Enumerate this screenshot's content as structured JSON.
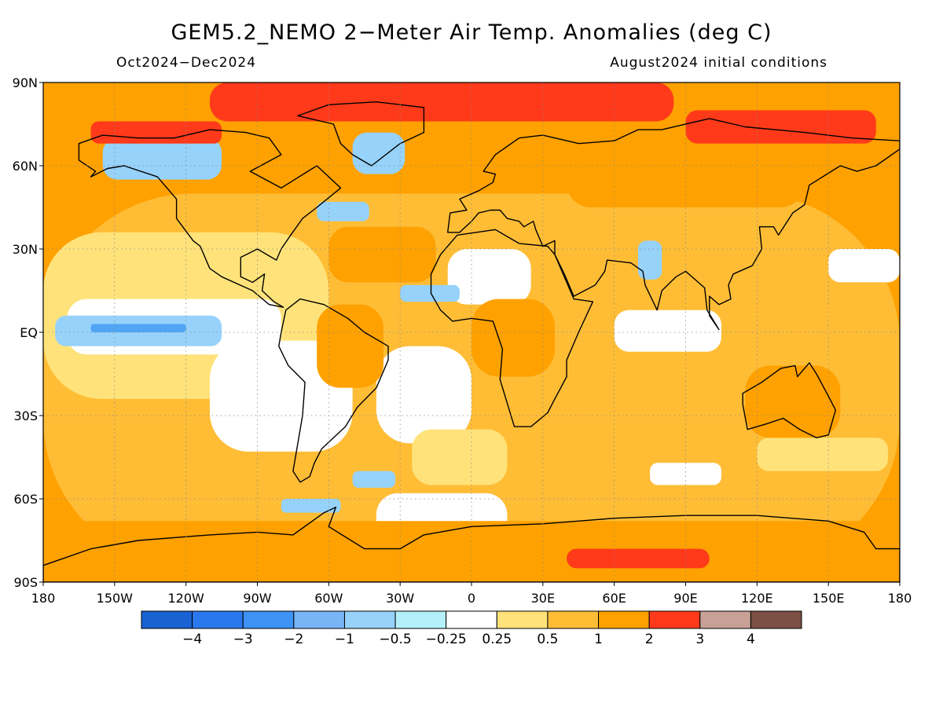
{
  "title": "GEM5.2_NEMO 2−Meter Air Temp. Anomalies (deg C)",
  "subtitle_left": "Oct2024−Dec2024",
  "subtitle_right": "August2024 initial conditions",
  "map": {
    "projection": "cylindrical-equidistant",
    "lon_range": [
      -180,
      180
    ],
    "lat_range": [
      -90,
      90
    ],
    "grid": "dotted",
    "lat_ticks": [
      {
        "value": 90,
        "label": "90N"
      },
      {
        "value": 60,
        "label": "60N"
      },
      {
        "value": 30,
        "label": "30N"
      },
      {
        "value": 0,
        "label": "EQ"
      },
      {
        "value": -30,
        "label": "30S"
      },
      {
        "value": -60,
        "label": "60S"
      },
      {
        "value": -90,
        "label": "90S"
      }
    ],
    "lon_ticks": [
      {
        "value": -180,
        "label": "180"
      },
      {
        "value": -150,
        "label": "150W"
      },
      {
        "value": -120,
        "label": "120W"
      },
      {
        "value": -90,
        "label": "90W"
      },
      {
        "value": -60,
        "label": "60W"
      },
      {
        "value": -30,
        "label": "30W"
      },
      {
        "value": 0,
        "label": "0"
      },
      {
        "value": 30,
        "label": "30E"
      },
      {
        "value": 60,
        "label": "60E"
      },
      {
        "value": 90,
        "label": "90E"
      },
      {
        "value": 120,
        "label": "120E"
      },
      {
        "value": 150,
        "label": "150E"
      },
      {
        "value": 180,
        "label": "180"
      }
    ],
    "background_color": "#ffa100",
    "regions": [
      {
        "color": "#ffbd36",
        "lon": -180,
        "lat": 50,
        "w": 360,
        "h": 135,
        "round": 0.4
      },
      {
        "color": "#ffe37a",
        "lon": -180,
        "lat": 36,
        "w": 120,
        "h": 60
      },
      {
        "color": "#ffffff",
        "lon": -170,
        "lat": 12,
        "w": 90,
        "h": 20
      },
      {
        "color": "#ffffff",
        "lon": -110,
        "lat": -3,
        "w": 60,
        "h": 40
      },
      {
        "color": "#ffffff",
        "lon": -40,
        "lat": -5,
        "w": 40,
        "h": 35
      },
      {
        "color": "#ffffff",
        "lon": -40,
        "lat": -58,
        "w": 55,
        "h": 22
      },
      {
        "color": "#ffe37a",
        "lon": -25,
        "lat": -35,
        "w": 40,
        "h": 20
      },
      {
        "color": "#ffffff",
        "lon": -10,
        "lat": 30,
        "w": 35,
        "h": 20
      },
      {
        "color": "#ffffff",
        "lon": 60,
        "lat": 8,
        "w": 45,
        "h": 15
      },
      {
        "color": "#ffffff",
        "lon": 150,
        "lat": 30,
        "w": 30,
        "h": 12
      },
      {
        "color": "#ffe37a",
        "lon": 120,
        "lat": -38,
        "w": 55,
        "h": 12
      },
      {
        "color": "#ffffff",
        "lon": 75,
        "lat": -47,
        "w": 30,
        "h": 8
      },
      {
        "color": "#ffa100",
        "lon": -65,
        "lat": 10,
        "w": 28,
        "h": 30
      },
      {
        "color": "#ffa100",
        "lon": 0,
        "lat": 12,
        "w": 35,
        "h": 28
      },
      {
        "color": "#ffa100",
        "lon": 115,
        "lat": -12,
        "w": 40,
        "h": 26
      },
      {
        "color": "#ffa100",
        "lon": 40,
        "lat": 70,
        "w": 100,
        "h": 25
      },
      {
        "color": "#ffa100",
        "lon": -60,
        "lat": 38,
        "w": 45,
        "h": 20
      },
      {
        "color": "#ffa100",
        "lon": -180,
        "lat": -68,
        "w": 360,
        "h": 22
      },
      {
        "color": "#96d2fa",
        "lon": -175,
        "lat": 6,
        "w": 70,
        "h": 11
      },
      {
        "color": "#50a5f5",
        "lon": -160,
        "lat": 3,
        "w": 40,
        "h": 3
      },
      {
        "color": "#96d2fa",
        "lon": -155,
        "lat": 70,
        "w": 50,
        "h": 15
      },
      {
        "color": "#96d2fa",
        "lon": -50,
        "lat": 72,
        "w": 22,
        "h": 15
      },
      {
        "color": "#96d2fa",
        "lon": -65,
        "lat": 47,
        "w": 22,
        "h": 7
      },
      {
        "color": "#96d2fa",
        "lon": -30,
        "lat": 17,
        "w": 25,
        "h": 6
      },
      {
        "color": "#96d2fa",
        "lon": 70,
        "lat": 33,
        "w": 10,
        "h": 14
      },
      {
        "color": "#96d2fa",
        "lon": -50,
        "lat": -50,
        "w": 18,
        "h": 6
      },
      {
        "color": "#96d2fa",
        "lon": -80,
        "lat": -60,
        "w": 25,
        "h": 5
      },
      {
        "color": "#ff3a1a",
        "lon": -110,
        "lat": 90,
        "w": 195,
        "h": 14,
        "round": 0.45
      },
      {
        "color": "#ff3a1a",
        "lon": -160,
        "lat": 76,
        "w": 55,
        "h": 8
      },
      {
        "color": "#ff3a1a",
        "lon": 90,
        "lat": 80,
        "w": 80,
        "h": 12
      },
      {
        "color": "#ff3a1a",
        "lon": 40,
        "lat": -78,
        "w": 60,
        "h": 7,
        "round": 0.5
      }
    ],
    "continents": [
      {
        "name": "north-america",
        "points": [
          [
            -165,
            68
          ],
          [
            -155,
            71
          ],
          [
            -140,
            70
          ],
          [
            -125,
            70
          ],
          [
            -110,
            73
          ],
          [
            -95,
            72
          ],
          [
            -85,
            70
          ],
          [
            -80,
            64
          ],
          [
            -93,
            58
          ],
          [
            -80,
            52
          ],
          [
            -65,
            60
          ],
          [
            -55,
            52
          ],
          [
            -65,
            45
          ],
          [
            -71,
            41
          ],
          [
            -76,
            35
          ],
          [
            -80,
            30
          ],
          [
            -82,
            26
          ],
          [
            -90,
            30
          ],
          [
            -97,
            27
          ],
          [
            -97,
            20
          ],
          [
            -92,
            18
          ],
          [
            -87,
            21
          ],
          [
            -88,
            15
          ],
          [
            -83,
            11
          ],
          [
            -79,
            9
          ],
          [
            -85,
            10
          ],
          [
            -92,
            15
          ],
          [
            -105,
            20
          ],
          [
            -110,
            23
          ],
          [
            -114,
            31
          ],
          [
            -117,
            33
          ],
          [
            -124,
            41
          ],
          [
            -124,
            48
          ],
          [
            -132,
            56
          ],
          [
            -146,
            60
          ],
          [
            -153,
            59
          ],
          [
            -160,
            56
          ],
          [
            -158,
            58
          ],
          [
            -165,
            62
          ]
        ]
      },
      {
        "name": "greenland",
        "points": [
          [
            -73,
            78
          ],
          [
            -60,
            82
          ],
          [
            -40,
            83
          ],
          [
            -20,
            81
          ],
          [
            -20,
            72
          ],
          [
            -30,
            68
          ],
          [
            -42,
            60
          ],
          [
            -50,
            64
          ],
          [
            -55,
            68
          ],
          [
            -58,
            75
          ]
        ]
      },
      {
        "name": "south-america",
        "points": [
          [
            -78,
            8
          ],
          [
            -72,
            12
          ],
          [
            -62,
            10
          ],
          [
            -52,
            5
          ],
          [
            -45,
            0
          ],
          [
            -35,
            -5
          ],
          [
            -35,
            -10
          ],
          [
            -40,
            -20
          ],
          [
            -48,
            -27
          ],
          [
            -53,
            -34
          ],
          [
            -58,
            -38
          ],
          [
            -63,
            -42
          ],
          [
            -66,
            -47
          ],
          [
            -68,
            -52
          ],
          [
            -72,
            -54
          ],
          [
            -75,
            -50
          ],
          [
            -73,
            -40
          ],
          [
            -71,
            -30
          ],
          [
            -70,
            -18
          ],
          [
            -77,
            -12
          ],
          [
            -81,
            -5
          ],
          [
            -80,
            0
          ]
        ]
      },
      {
        "name": "africa",
        "points": [
          [
            -17,
            21
          ],
          [
            -13,
            28
          ],
          [
            -6,
            35
          ],
          [
            10,
            37
          ],
          [
            20,
            32
          ],
          [
            32,
            31
          ],
          [
            35,
            28
          ],
          [
            43,
            12
          ],
          [
            51,
            11
          ],
          [
            45,
            0
          ],
          [
            40,
            -10
          ],
          [
            40,
            -16
          ],
          [
            35,
            -24
          ],
          [
            32,
            -29
          ],
          [
            25,
            -34
          ],
          [
            18,
            -34
          ],
          [
            12,
            -17
          ],
          [
            13,
            -6
          ],
          [
            9,
            4
          ],
          [
            0,
            5
          ],
          [
            -8,
            4
          ],
          [
            -13,
            8
          ],
          [
            -17,
            14
          ]
        ]
      },
      {
        "name": "eurasia",
        "points": [
          [
            -10,
            36
          ],
          [
            -9,
            43
          ],
          [
            -2,
            44
          ],
          [
            -5,
            48
          ],
          [
            3,
            51
          ],
          [
            9,
            54
          ],
          [
            10,
            57
          ],
          [
            5,
            58
          ],
          [
            10,
            64
          ],
          [
            20,
            70
          ],
          [
            30,
            71
          ],
          [
            45,
            68
          ],
          [
            60,
            69
          ],
          [
            70,
            73
          ],
          [
            80,
            73
          ],
          [
            100,
            77
          ],
          [
            115,
            74
          ],
          [
            140,
            72
          ],
          [
            160,
            70
          ],
          [
            180,
            69
          ],
          [
            180,
            66
          ],
          [
            170,
            60
          ],
          [
            162,
            58
          ],
          [
            155,
            60
          ],
          [
            142,
            53
          ],
          [
            140,
            46
          ],
          [
            135,
            43
          ],
          [
            129,
            35
          ],
          [
            127,
            38
          ],
          [
            121,
            38
          ],
          [
            122,
            30
          ],
          [
            118,
            24
          ],
          [
            110,
            21
          ],
          [
            108,
            17
          ],
          [
            109,
            12
          ],
          [
            104,
            10
          ],
          [
            100,
            13
          ],
          [
            100,
            6
          ],
          [
            104,
            1
          ],
          [
            99,
            8
          ],
          [
            98,
            16
          ],
          [
            94,
            19
          ],
          [
            90,
            22
          ],
          [
            86,
            20
          ],
          [
            80,
            15
          ],
          [
            78,
            8
          ],
          [
            73,
            17
          ],
          [
            72,
            22
          ],
          [
            67,
            25
          ],
          [
            57,
            26
          ],
          [
            56,
            22
          ],
          [
            52,
            17
          ],
          [
            43,
            13
          ],
          [
            39,
            21
          ],
          [
            35,
            28
          ],
          [
            35,
            33
          ],
          [
            30,
            31
          ],
          [
            27,
            37
          ],
          [
            26,
            40
          ],
          [
            22,
            38
          ],
          [
            20,
            40
          ],
          [
            15,
            41
          ],
          [
            12,
            44
          ],
          [
            8,
            44
          ],
          [
            3,
            43
          ],
          [
            0,
            40
          ],
          [
            -5,
            36
          ]
        ]
      },
      {
        "name": "australia",
        "points": [
          [
            114,
            -22
          ],
          [
            122,
            -18
          ],
          [
            130,
            -13
          ],
          [
            136,
            -12
          ],
          [
            137,
            -16
          ],
          [
            142,
            -11
          ],
          [
            145,
            -15
          ],
          [
            150,
            -23
          ],
          [
            153,
            -28
          ],
          [
            150,
            -37
          ],
          [
            145,
            -38
          ],
          [
            138,
            -35
          ],
          [
            131,
            -31
          ],
          [
            124,
            -33
          ],
          [
            116,
            -35
          ],
          [
            114,
            -26
          ]
        ]
      },
      {
        "name": "antarctica",
        "points": [
          [
            -180,
            -84
          ],
          [
            -160,
            -78
          ],
          [
            -140,
            -75
          ],
          [
            -110,
            -73
          ],
          [
            -90,
            -72
          ],
          [
            -75,
            -73
          ],
          [
            -62,
            -65
          ],
          [
            -57,
            -63
          ],
          [
            -60,
            -70
          ],
          [
            -45,
            -78
          ],
          [
            -30,
            -78
          ],
          [
            -20,
            -73
          ],
          [
            0,
            -70
          ],
          [
            30,
            -69
          ],
          [
            60,
            -67
          ],
          [
            90,
            -66
          ],
          [
            120,
            -66
          ],
          [
            150,
            -68
          ],
          [
            165,
            -72
          ],
          [
            170,
            -78
          ],
          [
            180,
            -78
          ],
          [
            180,
            -90
          ],
          [
            -180,
            -90
          ]
        ]
      }
    ]
  },
  "colorbar": {
    "colors": [
      "#1962d2",
      "#2a78ee",
      "#3c92f5",
      "#78b5f7",
      "#96d2fa",
      "#b4f0fa",
      "#ffffff",
      "#ffe37a",
      "#ffbd36",
      "#ffa100",
      "#ff3a1a",
      "#c8a096",
      "#7a5144"
    ],
    "labels": [
      "−4",
      "−3",
      "−2",
      "−1",
      "−0.5",
      "−0.25",
      "0.25",
      "0.5",
      "1",
      "2",
      "3",
      "4"
    ]
  }
}
